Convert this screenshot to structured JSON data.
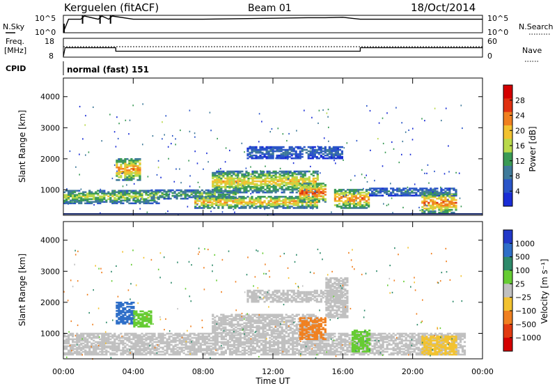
{
  "header": {
    "station": "Kerguelen (fitACF)",
    "beam": "Beam 01",
    "date": "18/Oct/2014"
  },
  "top_panels": {
    "nsky_label": "N.Sky",
    "nsky_ticks": [
      "10^5",
      "10^0"
    ],
    "nsearch_label": "N.Search",
    "freq_label": "Freq.",
    "freq_unit": "[MHz]",
    "freq_ticks": [
      "18",
      "8"
    ],
    "nave_label": "Nave",
    "nave_ticks": [
      "60",
      "0"
    ],
    "cpid_label": "CPID",
    "cpid_value": "normal (fast) 151"
  },
  "chart_data": [
    {
      "type": "line",
      "panel": "N.Sky / N.Search",
      "yscale": "log",
      "x_hours": [
        0,
        0.3,
        1.0,
        1.2,
        2.0,
        2.2,
        2.6,
        2.8,
        4,
        8,
        12,
        14,
        15,
        16,
        17,
        20,
        24
      ],
      "nsky": [
        1,
        10000.0,
        10000.0,
        100000.0,
        10000.0,
        100000.0,
        10000.0,
        100000.0,
        10000.0,
        10000.0,
        20000.0,
        30000.0,
        30000.0,
        40000.0,
        10000.0,
        10000.0,
        10000.0
      ]
    },
    {
      "type": "line",
      "panel": "Freq. / Nave",
      "x_hours": [
        0,
        0.1,
        3.0,
        3.0,
        17.0,
        17.0,
        24
      ],
      "freq_mhz": [
        8,
        13,
        13,
        11,
        11,
        13,
        13
      ],
      "nave": [
        40,
        40,
        40,
        40,
        40,
        40,
        40
      ],
      "ylim_freq": [
        8,
        18
      ],
      "ylim_nave": [
        0,
        60
      ]
    },
    {
      "type": "heatmap",
      "panel": "Power",
      "ylabel": "Slant Range [km]",
      "yticks": [
        1000,
        2000,
        3000,
        4000
      ],
      "ylim": [
        180,
        4600
      ],
      "colorbar_label": "Power [dB]",
      "colorbar_ticks": [
        "4",
        "8",
        "12",
        "16",
        "20",
        "24",
        "28"
      ],
      "clim": [
        0,
        30
      ],
      "echo_regions": [
        {
          "t0": 0.0,
          "t1": 5.5,
          "r0": 550,
          "r1": 1000,
          "value": 14
        },
        {
          "t0": 3.0,
          "t1": 4.4,
          "r0": 1300,
          "r1": 2000,
          "value": 20
        },
        {
          "t0": 5.0,
          "t1": 10.0,
          "r0": 700,
          "r1": 1000,
          "value": 12
        },
        {
          "t0": 7.5,
          "t1": 14.5,
          "r0": 400,
          "r1": 800,
          "value": 18
        },
        {
          "t0": 8.5,
          "t1": 14.5,
          "r0": 900,
          "r1": 1600,
          "value": 17
        },
        {
          "t0": 13.5,
          "t1": 15.0,
          "r0": 600,
          "r1": 1200,
          "value": 22
        },
        {
          "t0": 15.5,
          "t1": 17.5,
          "r0": 400,
          "r1": 1000,
          "value": 20
        },
        {
          "t0": 17.5,
          "t1": 22.5,
          "r0": 800,
          "r1": 1050,
          "value": 8
        },
        {
          "t0": 20.5,
          "t1": 22.5,
          "r0": 250,
          "r1": 900,
          "value": 21
        },
        {
          "t0": 10.5,
          "t1": 16.0,
          "r0": 2000,
          "r1": 2400,
          "value": 7
        }
      ]
    },
    {
      "type": "heatmap",
      "panel": "Velocity",
      "xlabel": "Time UT",
      "xticks": [
        "00:00",
        "04:00",
        "08:00",
        "12:00",
        "16:00",
        "20:00",
        "00:00"
      ],
      "ylabel": "Slant Range [km]",
      "yticks": [
        1000,
        2000,
        3000,
        4000
      ],
      "ylim": [
        180,
        4600
      ],
      "colorbar_label": "Velocity [m s⁻¹]",
      "colorbar_ticks": [
        "1000",
        "500",
        "100",
        "25",
        "−25",
        "−100",
        "−500",
        "−1000"
      ],
      "echo_regions": [
        {
          "t0": 0.0,
          "t1": 23.0,
          "r0": 300,
          "r1": 1000,
          "value": 0
        },
        {
          "t0": 3.0,
          "t1": 4.0,
          "r0": 1300,
          "r1": 2000,
          "value": 700
        },
        {
          "t0": 4.0,
          "t1": 5.0,
          "r0": 1200,
          "r1": 1700,
          "value": 80
        },
        {
          "t0": 8.5,
          "t1": 14.5,
          "r0": 1000,
          "r1": 1600,
          "value": 0
        },
        {
          "t0": 13.5,
          "t1": 15.0,
          "r0": 800,
          "r1": 1500,
          "value": -200
        },
        {
          "t0": 15.0,
          "t1": 16.2,
          "r0": 1500,
          "r1": 2800,
          "value": 0
        },
        {
          "t0": 16.5,
          "t1": 17.5,
          "r0": 400,
          "r1": 1100,
          "value": 60
        },
        {
          "t0": 20.5,
          "t1": 22.5,
          "r0": 300,
          "r1": 900,
          "value": -60
        },
        {
          "t0": 10.5,
          "t1": 16.0,
          "r0": 2000,
          "r1": 2400,
          "value": 0
        }
      ]
    }
  ],
  "colors": {
    "power_scale": [
      "#1a2dd6",
      "#2a55c8",
      "#3f7a9a",
      "#3a9a55",
      "#b9d94a",
      "#f2c230",
      "#f08020",
      "#e03010",
      "#d40000"
    ],
    "velocity_scale": [
      "#2238c8",
      "#2e6ec8",
      "#2e8a6a",
      "#66cc33",
      "#c0c0c0",
      "#f2c230",
      "#f08020",
      "#e23a10",
      "#d40000"
    ]
  }
}
